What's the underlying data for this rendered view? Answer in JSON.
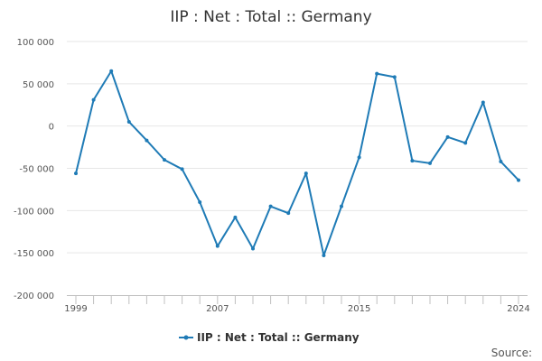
{
  "chart_data": {
    "type": "line",
    "title": "IIP : Net : Total :: Germany",
    "x": [
      1999,
      2000,
      2001,
      2002,
      2003,
      2004,
      2005,
      2006,
      2007,
      2008,
      2009,
      2010,
      2011,
      2012,
      2013,
      2014,
      2015,
      2016,
      2017,
      2018,
      2019,
      2020,
      2021,
      2022,
      2023,
      2024
    ],
    "series": [
      {
        "name": "IIP : Net : Total :: Germany",
        "color": "#1f7bb6",
        "values": [
          -56000,
          31000,
          65000,
          5000,
          -17000,
          -40000,
          -51000,
          -90000,
          -142000,
          -108000,
          -145000,
          -95000,
          -103000,
          -56000,
          -153000,
          -95000,
          -37000,
          62000,
          58000,
          -41000,
          -44000,
          -13000,
          -20000,
          28000,
          -42000,
          -64000
        ]
      }
    ],
    "x_tick_labels": [
      "1999",
      "2007",
      "2015",
      "2024"
    ],
    "y_tick_labels": [
      "100 000",
      "50 000",
      "0",
      "-50 000",
      "-100 000",
      "-150 000",
      "-200 000"
    ],
    "ylim": [
      -200000,
      100000
    ],
    "grid": true,
    "legend_position": "bottom",
    "source_label": "Source:"
  }
}
